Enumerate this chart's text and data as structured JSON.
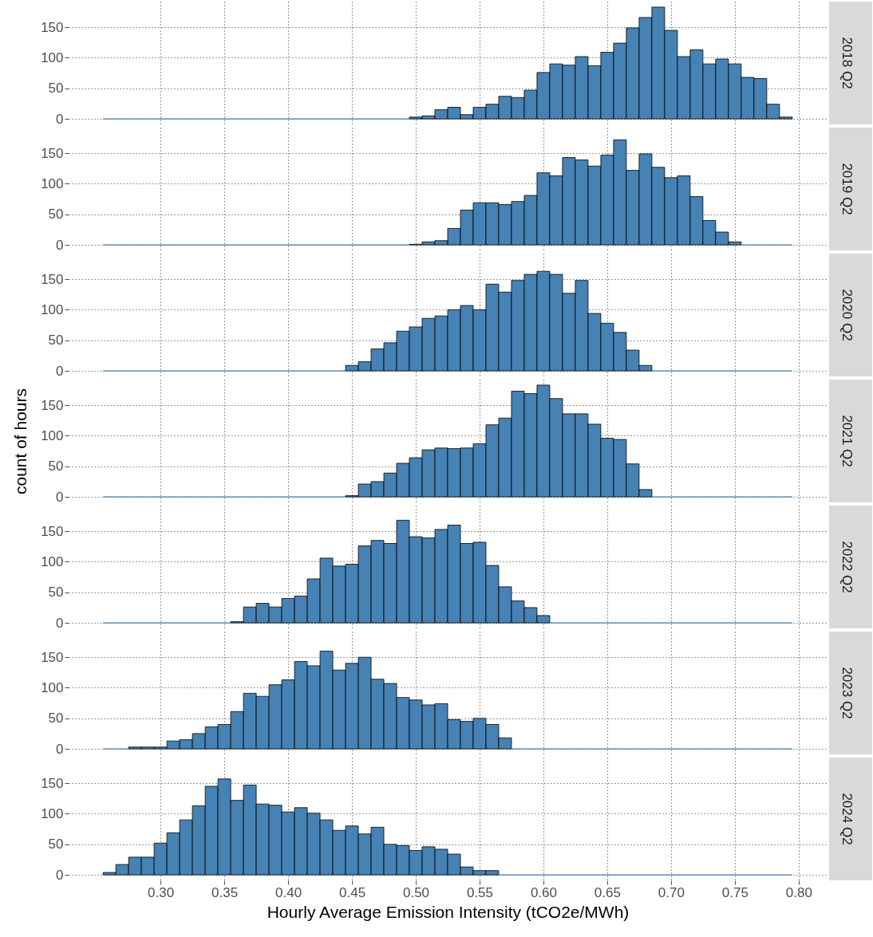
{
  "chart_data": [
    {
      "type": "histogram",
      "annotations": [
        "2018 Q2"
      ],
      "color": "#4682b4",
      "grid": true,
      "tick_labels": "y",
      "xlim": [
        0.228,
        0.822
      ],
      "xticks": [
        0.3,
        0.35,
        0.4,
        0.45,
        0.5,
        0.55,
        0.6,
        0.65,
        0.7,
        0.75,
        0.8
      ],
      "ylim": [
        -9,
        192
      ],
      "yticks": [
        0,
        50,
        100,
        150
      ],
      "bins": [
        0.255,
        0.265,
        0.275,
        0.285,
        0.295,
        0.305,
        0.315,
        0.325,
        0.335,
        0.345,
        0.355,
        0.365,
        0.375,
        0.385,
        0.395,
        0.405,
        0.415,
        0.425,
        0.435,
        0.445,
        0.455,
        0.465,
        0.475,
        0.485,
        0.495,
        0.505,
        0.515,
        0.525,
        0.535,
        0.545,
        0.555,
        0.565,
        0.575,
        0.585,
        0.595,
        0.605,
        0.615,
        0.625,
        0.635,
        0.645,
        0.655,
        0.665,
        0.675,
        0.685,
        0.695,
        0.705,
        0.715,
        0.725,
        0.735,
        0.745,
        0.755,
        0.765,
        0.775,
        0.785,
        0.795
      ],
      "values": [
        0,
        0,
        0,
        0,
        0,
        0,
        0,
        0,
        0,
        0,
        0,
        0,
        0,
        0,
        0,
        0,
        0,
        0,
        0,
        0,
        0,
        0,
        0,
        0,
        3,
        5,
        15,
        19,
        7,
        19,
        24,
        37,
        35,
        47,
        76,
        90,
        88,
        102,
        87,
        109,
        124,
        149,
        166,
        183,
        145,
        102,
        113,
        90,
        98,
        90,
        68,
        66,
        24,
        3
      ]
    },
    {
      "type": "histogram",
      "annotations": [
        "2019 Q2"
      ],
      "color": "#4682b4",
      "grid": true,
      "tick_labels": "y",
      "xlim": [
        0.228,
        0.822
      ],
      "xticks": [
        0.3,
        0.35,
        0.4,
        0.45,
        0.5,
        0.55,
        0.6,
        0.65,
        0.7,
        0.75,
        0.8
      ],
      "ylim": [
        -9,
        192
      ],
      "yticks": [
        0,
        50,
        100,
        150
      ],
      "bins": [
        0.255,
        0.265,
        0.275,
        0.285,
        0.295,
        0.305,
        0.315,
        0.325,
        0.335,
        0.345,
        0.355,
        0.365,
        0.375,
        0.385,
        0.395,
        0.405,
        0.415,
        0.425,
        0.435,
        0.445,
        0.455,
        0.465,
        0.475,
        0.485,
        0.495,
        0.505,
        0.515,
        0.525,
        0.535,
        0.545,
        0.555,
        0.565,
        0.575,
        0.585,
        0.595,
        0.605,
        0.615,
        0.625,
        0.635,
        0.645,
        0.655,
        0.665,
        0.675,
        0.685,
        0.695,
        0.705,
        0.715,
        0.725,
        0.735,
        0.745,
        0.755,
        0.765,
        0.775,
        0.785,
        0.795
      ],
      "values": [
        0,
        0,
        0,
        0,
        0,
        0,
        0,
        0,
        0,
        0,
        0,
        0,
        0,
        0,
        0,
        0,
        0,
        0,
        0,
        0,
        0,
        0,
        0,
        0,
        1,
        5,
        7,
        27,
        57,
        69,
        69,
        66,
        71,
        81,
        118,
        113,
        143,
        139,
        129,
        147,
        172,
        122,
        149,
        127,
        110,
        113,
        79,
        40,
        21,
        5,
        0,
        0,
        0,
        0
      ]
    },
    {
      "type": "histogram",
      "annotations": [
        "2020 Q2"
      ],
      "color": "#4682b4",
      "grid": true,
      "tick_labels": "y",
      "xlim": [
        0.228,
        0.822
      ],
      "xticks": [
        0.3,
        0.35,
        0.4,
        0.45,
        0.5,
        0.55,
        0.6,
        0.65,
        0.7,
        0.75,
        0.8
      ],
      "ylim": [
        -9,
        192
      ],
      "yticks": [
        0,
        50,
        100,
        150
      ],
      "bins": [
        0.255,
        0.265,
        0.275,
        0.285,
        0.295,
        0.305,
        0.315,
        0.325,
        0.335,
        0.345,
        0.355,
        0.365,
        0.375,
        0.385,
        0.395,
        0.405,
        0.415,
        0.425,
        0.435,
        0.445,
        0.455,
        0.465,
        0.475,
        0.485,
        0.495,
        0.505,
        0.515,
        0.525,
        0.535,
        0.545,
        0.555,
        0.565,
        0.575,
        0.585,
        0.595,
        0.605,
        0.615,
        0.625,
        0.635,
        0.645,
        0.655,
        0.665,
        0.675,
        0.685,
        0.695,
        0.705,
        0.715,
        0.725,
        0.735,
        0.745,
        0.755,
        0.765,
        0.775,
        0.785,
        0.795
      ],
      "values": [
        0,
        0,
        0,
        0,
        0,
        0,
        0,
        0,
        0,
        0,
        0,
        0,
        0,
        0,
        0,
        0,
        0,
        0,
        0,
        9,
        15,
        36,
        46,
        65,
        72,
        86,
        90,
        100,
        107,
        100,
        142,
        129,
        148,
        158,
        163,
        158,
        127,
        148,
        94,
        78,
        63,
        34,
        9,
        0,
        0,
        0,
        0,
        0,
        0,
        0,
        0,
        0,
        0,
        0
      ]
    },
    {
      "type": "histogram",
      "annotations": [
        "2021 Q2"
      ],
      "ylabel": "count of hours",
      "color": "#4682b4",
      "grid": true,
      "tick_labels": "y",
      "xlim": [
        0.228,
        0.822
      ],
      "xticks": [
        0.3,
        0.35,
        0.4,
        0.45,
        0.5,
        0.55,
        0.6,
        0.65,
        0.7,
        0.75,
        0.8
      ],
      "ylim": [
        -9,
        192
      ],
      "yticks": [
        0,
        50,
        100,
        150
      ],
      "bins": [
        0.255,
        0.265,
        0.275,
        0.285,
        0.295,
        0.305,
        0.315,
        0.325,
        0.335,
        0.345,
        0.355,
        0.365,
        0.375,
        0.385,
        0.395,
        0.405,
        0.415,
        0.425,
        0.435,
        0.445,
        0.455,
        0.465,
        0.475,
        0.485,
        0.495,
        0.505,
        0.515,
        0.525,
        0.535,
        0.545,
        0.555,
        0.565,
        0.575,
        0.585,
        0.595,
        0.605,
        0.615,
        0.625,
        0.635,
        0.645,
        0.655,
        0.665,
        0.675,
        0.685,
        0.695,
        0.705,
        0.715,
        0.725,
        0.735,
        0.745,
        0.755,
        0.765,
        0.775,
        0.785,
        0.795
      ],
      "values": [
        0,
        0,
        0,
        0,
        0,
        0,
        0,
        0,
        0,
        0,
        0,
        0,
        0,
        0,
        0,
        0,
        0,
        0,
        0,
        2,
        21,
        25,
        39,
        55,
        64,
        77,
        80,
        79,
        80,
        87,
        118,
        129,
        173,
        169,
        183,
        161,
        136,
        136,
        119,
        96,
        94,
        54,
        12,
        0,
        0,
        0,
        0,
        0,
        0,
        0,
        0,
        0,
        0,
        0
      ]
    },
    {
      "type": "histogram",
      "annotations": [
        "2022 Q2"
      ],
      "color": "#4682b4",
      "grid": true,
      "tick_labels": "y",
      "xlim": [
        0.228,
        0.822
      ],
      "xticks": [
        0.3,
        0.35,
        0.4,
        0.45,
        0.5,
        0.55,
        0.6,
        0.65,
        0.7,
        0.75,
        0.8
      ],
      "ylim": [
        -9,
        192
      ],
      "yticks": [
        0,
        50,
        100,
        150
      ],
      "bins": [
        0.255,
        0.265,
        0.275,
        0.285,
        0.295,
        0.305,
        0.315,
        0.325,
        0.335,
        0.345,
        0.355,
        0.365,
        0.375,
        0.385,
        0.395,
        0.405,
        0.415,
        0.425,
        0.435,
        0.445,
        0.455,
        0.465,
        0.475,
        0.485,
        0.495,
        0.505,
        0.515,
        0.525,
        0.535,
        0.545,
        0.555,
        0.565,
        0.575,
        0.585,
        0.595,
        0.605,
        0.615,
        0.625,
        0.635,
        0.645,
        0.655,
        0.665,
        0.675,
        0.685,
        0.695,
        0.705,
        0.715,
        0.725,
        0.735,
        0.745,
        0.755,
        0.765,
        0.775,
        0.785,
        0.795
      ],
      "values": [
        0,
        0,
        0,
        0,
        0,
        0,
        0,
        0,
        0,
        0,
        2,
        26,
        32,
        26,
        40,
        44,
        72,
        106,
        93,
        96,
        126,
        135,
        130,
        168,
        141,
        139,
        153,
        160,
        130,
        132,
        94,
        59,
        36,
        25,
        12,
        0,
        0,
        0,
        0,
        0,
        0,
        0,
        0,
        0,
        0,
        0,
        0,
        0,
        0,
        0,
        0,
        0,
        0,
        0
      ]
    },
    {
      "type": "histogram",
      "annotations": [
        "2023 Q2"
      ],
      "color": "#4682b4",
      "grid": true,
      "tick_labels": "y",
      "xlim": [
        0.228,
        0.822
      ],
      "xticks": [
        0.3,
        0.35,
        0.4,
        0.45,
        0.5,
        0.55,
        0.6,
        0.65,
        0.7,
        0.75,
        0.8
      ],
      "ylim": [
        -9,
        192
      ],
      "yticks": [
        0,
        50,
        100,
        150
      ],
      "bins": [
        0.255,
        0.265,
        0.275,
        0.285,
        0.295,
        0.305,
        0.315,
        0.325,
        0.335,
        0.345,
        0.355,
        0.365,
        0.375,
        0.385,
        0.395,
        0.405,
        0.415,
        0.425,
        0.435,
        0.445,
        0.455,
        0.465,
        0.475,
        0.485,
        0.495,
        0.505,
        0.515,
        0.525,
        0.535,
        0.545,
        0.555,
        0.565,
        0.575,
        0.585,
        0.595,
        0.605,
        0.615,
        0.625,
        0.635,
        0.645,
        0.655,
        0.665,
        0.675,
        0.685,
        0.695,
        0.705,
        0.715,
        0.725,
        0.735,
        0.745,
        0.755,
        0.765,
        0.775,
        0.785,
        0.795
      ],
      "values": [
        0,
        0,
        3,
        3,
        3,
        13,
        15,
        25,
        36,
        40,
        61,
        91,
        86,
        105,
        113,
        143,
        136,
        160,
        129,
        140,
        150,
        114,
        107,
        84,
        80,
        72,
        74,
        48,
        45,
        50,
        40,
        18,
        0,
        0,
        0,
        0,
        0,
        0,
        0,
        0,
        0,
        0,
        0,
        0,
        0,
        0,
        0,
        0,
        0,
        0,
        0,
        0,
        0,
        0
      ]
    },
    {
      "type": "histogram",
      "annotations": [
        "2024 Q2"
      ],
      "xlabel": "Hourly Average Emission Intensity (tCO2e/MWh)",
      "color": "#4682b4",
      "grid": true,
      "xlim": [
        0.228,
        0.822
      ],
      "xticks": [
        {
          "value": 0.3,
          "label": "0.30"
        },
        {
          "value": 0.35,
          "label": "0.35"
        },
        {
          "value": 0.4,
          "label": "0.40"
        },
        {
          "value": 0.45,
          "label": "0.45"
        },
        {
          "value": 0.5,
          "label": "0.50"
        },
        {
          "value": 0.55,
          "label": "0.55"
        },
        {
          "value": 0.6,
          "label": "0.60"
        },
        {
          "value": 0.65,
          "label": "0.65"
        },
        {
          "value": 0.7,
          "label": "0.70"
        },
        {
          "value": 0.75,
          "label": "0.75"
        },
        {
          "value": 0.8,
          "label": "0.80"
        }
      ],
      "ylim": [
        -9,
        192
      ],
      "yticks": [
        0,
        50,
        100,
        150
      ],
      "bins": [
        0.255,
        0.265,
        0.275,
        0.285,
        0.295,
        0.305,
        0.315,
        0.325,
        0.335,
        0.345,
        0.355,
        0.365,
        0.375,
        0.385,
        0.395,
        0.405,
        0.415,
        0.425,
        0.435,
        0.445,
        0.455,
        0.465,
        0.475,
        0.485,
        0.495,
        0.505,
        0.515,
        0.525,
        0.535,
        0.545,
        0.555,
        0.565,
        0.575,
        0.585,
        0.595,
        0.605,
        0.615,
        0.625,
        0.635,
        0.645,
        0.655,
        0.665,
        0.675,
        0.685,
        0.695,
        0.705,
        0.715,
        0.725,
        0.735,
        0.745,
        0.755,
        0.765,
        0.775,
        0.785,
        0.795
      ],
      "values": [
        4,
        17,
        29,
        29,
        52,
        69,
        90,
        113,
        145,
        157,
        122,
        147,
        116,
        114,
        103,
        110,
        101,
        90,
        73,
        80,
        67,
        78,
        50,
        48,
        40,
        46,
        42,
        34,
        13,
        7,
        7,
        0,
        0,
        0,
        0,
        0,
        0,
        0,
        0,
        0,
        0,
        0,
        0,
        0,
        0,
        0,
        0,
        0,
        0,
        0,
        0,
        0,
        0,
        0
      ]
    }
  ]
}
